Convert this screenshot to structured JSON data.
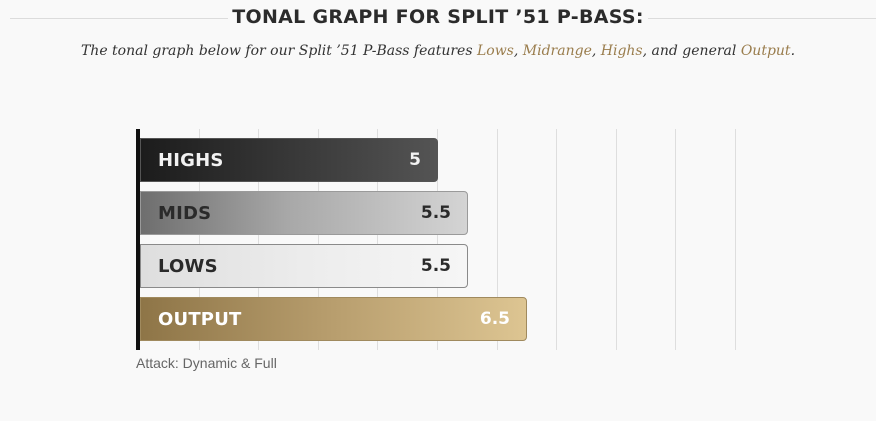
{
  "heading": {
    "title": "TONAL GRAPH FOR SPLIT ’51 P-BASS:"
  },
  "subtitle": {
    "prefix": "The tonal graph below for our Split ’51 P-Bass features ",
    "lows": "Lows",
    "sep1": ", ",
    "midrange": "Midrange",
    "sep2": ", ",
    "highs": "Highs",
    "sep3": ", and general ",
    "output": "Output",
    "suffix": "."
  },
  "colors": {
    "accent_gold": "#9a7d4d",
    "axis": "#111111",
    "gridline": "#dedede"
  },
  "caption": "Attack: Dynamic & Full",
  "chart_data": {
    "type": "bar",
    "orientation": "horizontal",
    "categories": [
      "HIGHS",
      "MIDS",
      "LOWS",
      "OUTPUT"
    ],
    "values": [
      5,
      5.5,
      5.5,
      6.5
    ],
    "value_labels": [
      "5",
      "5.5",
      "5.5",
      "6.5"
    ],
    "xlim": [
      0,
      10
    ],
    "grid": true,
    "title": "",
    "xlabel": "",
    "ylabel": "",
    "series_styles": [
      "black",
      "grey",
      "white",
      "gold"
    ]
  }
}
